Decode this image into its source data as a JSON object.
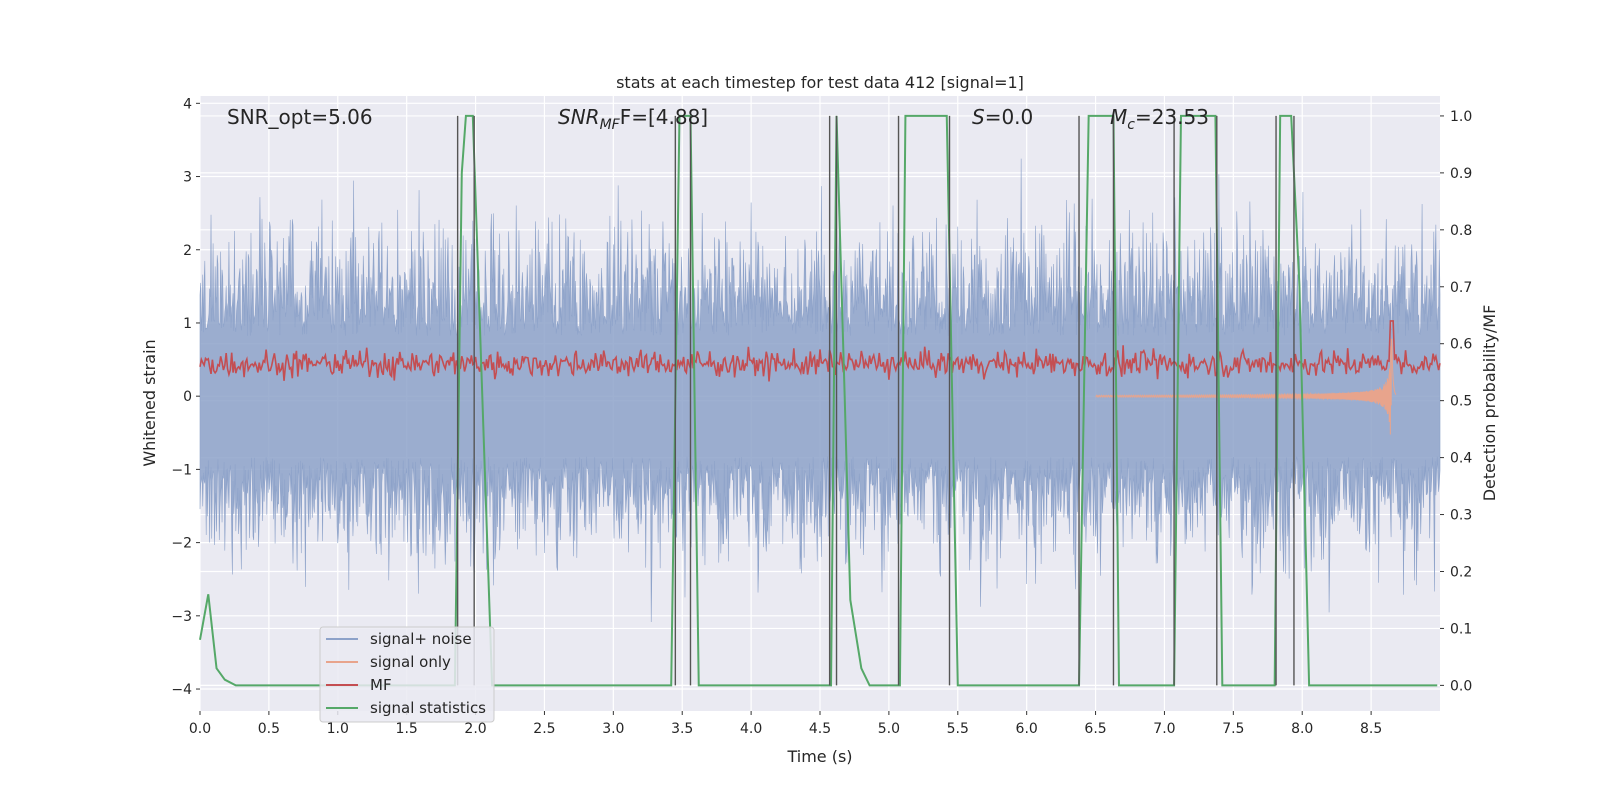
{
  "chart_data": {
    "type": "line",
    "title": "stats at each timestep for test data 412 [signal=1]",
    "xlabel": "Time (s)",
    "ylabel_left": "Whitened strain",
    "ylabel_right": "Detection probability/MF",
    "xlim": [
      0.0,
      9.0
    ],
    "ylim_left": [
      -4.3,
      4.1
    ],
    "ylim_right": [
      -0.045,
      1.035
    ],
    "xticks": [
      0.0,
      0.5,
      1.0,
      1.5,
      2.0,
      2.5,
      3.0,
      3.5,
      4.0,
      4.5,
      5.0,
      5.5,
      6.0,
      6.5,
      7.0,
      7.5,
      8.0,
      8.5
    ],
    "xtick_labels": [
      "0.0",
      "0.5",
      "1.0",
      "1.5",
      "2.0",
      "2.5",
      "3.0",
      "3.5",
      "4.0",
      "4.5",
      "5.0",
      "5.5",
      "6.0",
      "6.5",
      "7.0",
      "7.5",
      "8.0",
      "8.5"
    ],
    "yticks_left": [
      4,
      3,
      2,
      1,
      0,
      -1,
      -2,
      -3,
      -4
    ],
    "ytick_labels_left": [
      "4",
      "3",
      "2",
      "1",
      "0",
      "−1",
      "−2",
      "−3",
      "−4"
    ],
    "yticks_right": [
      1.0,
      0.9,
      0.8,
      0.7,
      0.6,
      0.5,
      0.4,
      0.3,
      0.2,
      0.1,
      0.0
    ],
    "ytick_labels_right": [
      "1.0",
      "0.9",
      "0.8",
      "0.7",
      "0.6",
      "0.5",
      "0.4",
      "0.3",
      "0.2",
      "0.1",
      "0.0"
    ],
    "grid": true,
    "legend_position": "lower-left",
    "annotations": {
      "snr_opt": "SNR_opt=5.06",
      "snr_mf_base": "SNR",
      "snr_mf_sub": "MF",
      "snr_mf_value": "F=[4.88]",
      "s_var": "S",
      "s_value": "=0.0",
      "mc_var": "M",
      "mc_sub": "c",
      "mc_value": "=23.53"
    },
    "series": [
      {
        "name": "signal+ noise",
        "color": "#8da2c9",
        "axis": "left",
        "style": "noise",
        "envelope": {
          "typical_upper": 1.5,
          "typical_lower": -1.5,
          "peak_upper": 3.5,
          "peak_lower": -3.4
        }
      },
      {
        "name": "signal only",
        "color": "#e8a48c",
        "axis": "left",
        "style": "chirp",
        "chirp": {
          "start": 6.5,
          "merger": 8.65,
          "peak_amplitude": 1.0
        }
      },
      {
        "name": "MF",
        "color": "#c44e52",
        "axis": "right",
        "style": "mf",
        "typical_range": [
          0.53,
          0.6
        ],
        "spike": {
          "x": 8.65,
          "y": 0.64
        }
      },
      {
        "name": "signal statistics",
        "color": "#55a868",
        "axis": "right",
        "style": "line",
        "x": [
          0.0,
          0.06,
          0.12,
          0.18,
          0.26,
          0.4,
          1.85,
          1.9,
          1.93,
          1.98,
          2.05,
          2.12,
          3.42,
          3.48,
          3.56,
          3.62,
          4.45,
          4.58,
          4.62,
          4.68,
          4.72,
          4.8,
          4.86,
          5.08,
          5.12,
          5.42,
          5.5,
          6.38,
          6.45,
          6.63,
          6.67,
          7.07,
          7.12,
          7.37,
          7.42,
          7.8,
          7.84,
          7.92,
          7.98,
          8.05,
          8.98
        ],
        "y": [
          0.08,
          0.16,
          0.03,
          0.01,
          0.0,
          0.0,
          0.0,
          0.9,
          1.0,
          1.0,
          0.5,
          0.0,
          0.0,
          1.0,
          1.0,
          0.0,
          0.0,
          0.0,
          1.0,
          0.5,
          0.15,
          0.03,
          0.0,
          0.0,
          1.0,
          1.0,
          0.0,
          0.0,
          1.0,
          1.0,
          0.0,
          0.0,
          1.0,
          1.0,
          0.0,
          0.0,
          1.0,
          1.0,
          0.7,
          0.0,
          0.0
        ]
      }
    ],
    "vertical_lines": [
      1.87,
      1.99,
      3.45,
      3.56,
      4.57,
      4.62,
      5.07,
      5.44,
      6.38,
      6.63,
      7.07,
      7.38,
      7.81,
      7.94
    ]
  }
}
